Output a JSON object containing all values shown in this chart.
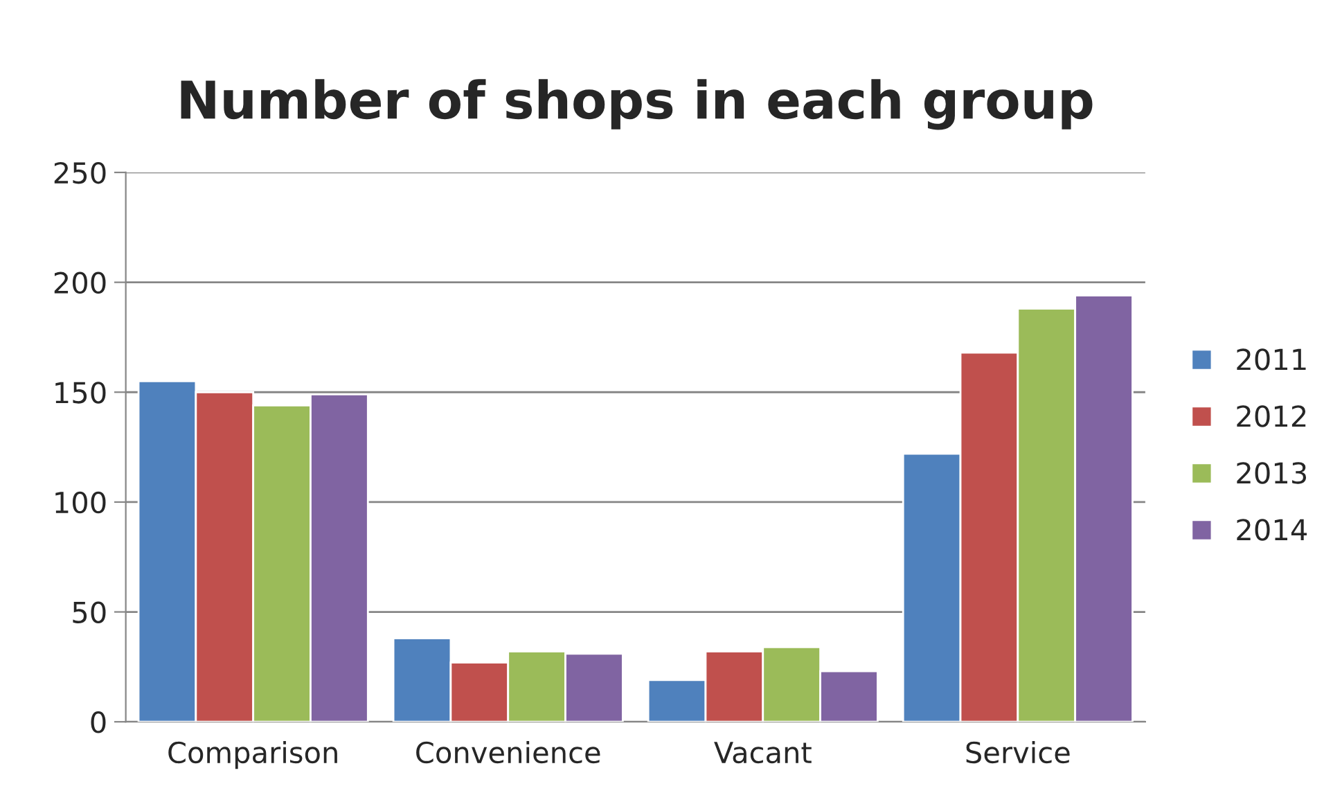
{
  "chart_data": {
    "type": "bar",
    "title": "Number of shops in each group",
    "categories": [
      "Comparison",
      "Convenience",
      "Vacant",
      "Service"
    ],
    "series": [
      {
        "name": "2011",
        "color": "#4f81bd",
        "values": [
          155,
          38,
          19,
          122
        ]
      },
      {
        "name": "2012",
        "color": "#c0504d",
        "values": [
          150,
          27,
          32,
          168
        ]
      },
      {
        "name": "2013",
        "color": "#9bbb59",
        "values": [
          144,
          32,
          34,
          188
        ]
      },
      {
        "name": "2014",
        "color": "#8064a2",
        "values": [
          149,
          31,
          23,
          194
        ]
      }
    ],
    "ylim": [
      0,
      250
    ],
    "yticks": [
      0,
      50,
      100,
      150,
      200,
      250
    ],
    "grid": "y",
    "legend": "right"
  }
}
